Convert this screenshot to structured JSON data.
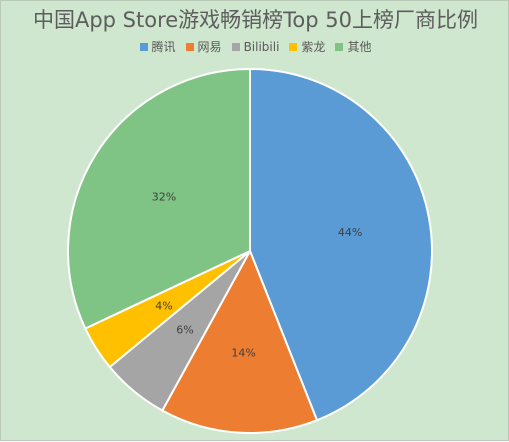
{
  "chart_data": {
    "type": "pie",
    "title": "中国App Store游戏畅销榜Top 50上榜厂商比例",
    "categories": [
      "腾讯",
      "网易",
      "Bilibili",
      "紫龙",
      "其他"
    ],
    "values": [
      44,
      14,
      6,
      4,
      32
    ],
    "labels": [
      "44%",
      "14%",
      "6%",
      "4%",
      "32%"
    ],
    "colors": [
      "#5b9bd5",
      "#ed7d31",
      "#a5a5a5",
      "#ffc000",
      "#7fc485"
    ],
    "legend_position": "top",
    "start_angle": "12 o'clock, clockwise"
  }
}
